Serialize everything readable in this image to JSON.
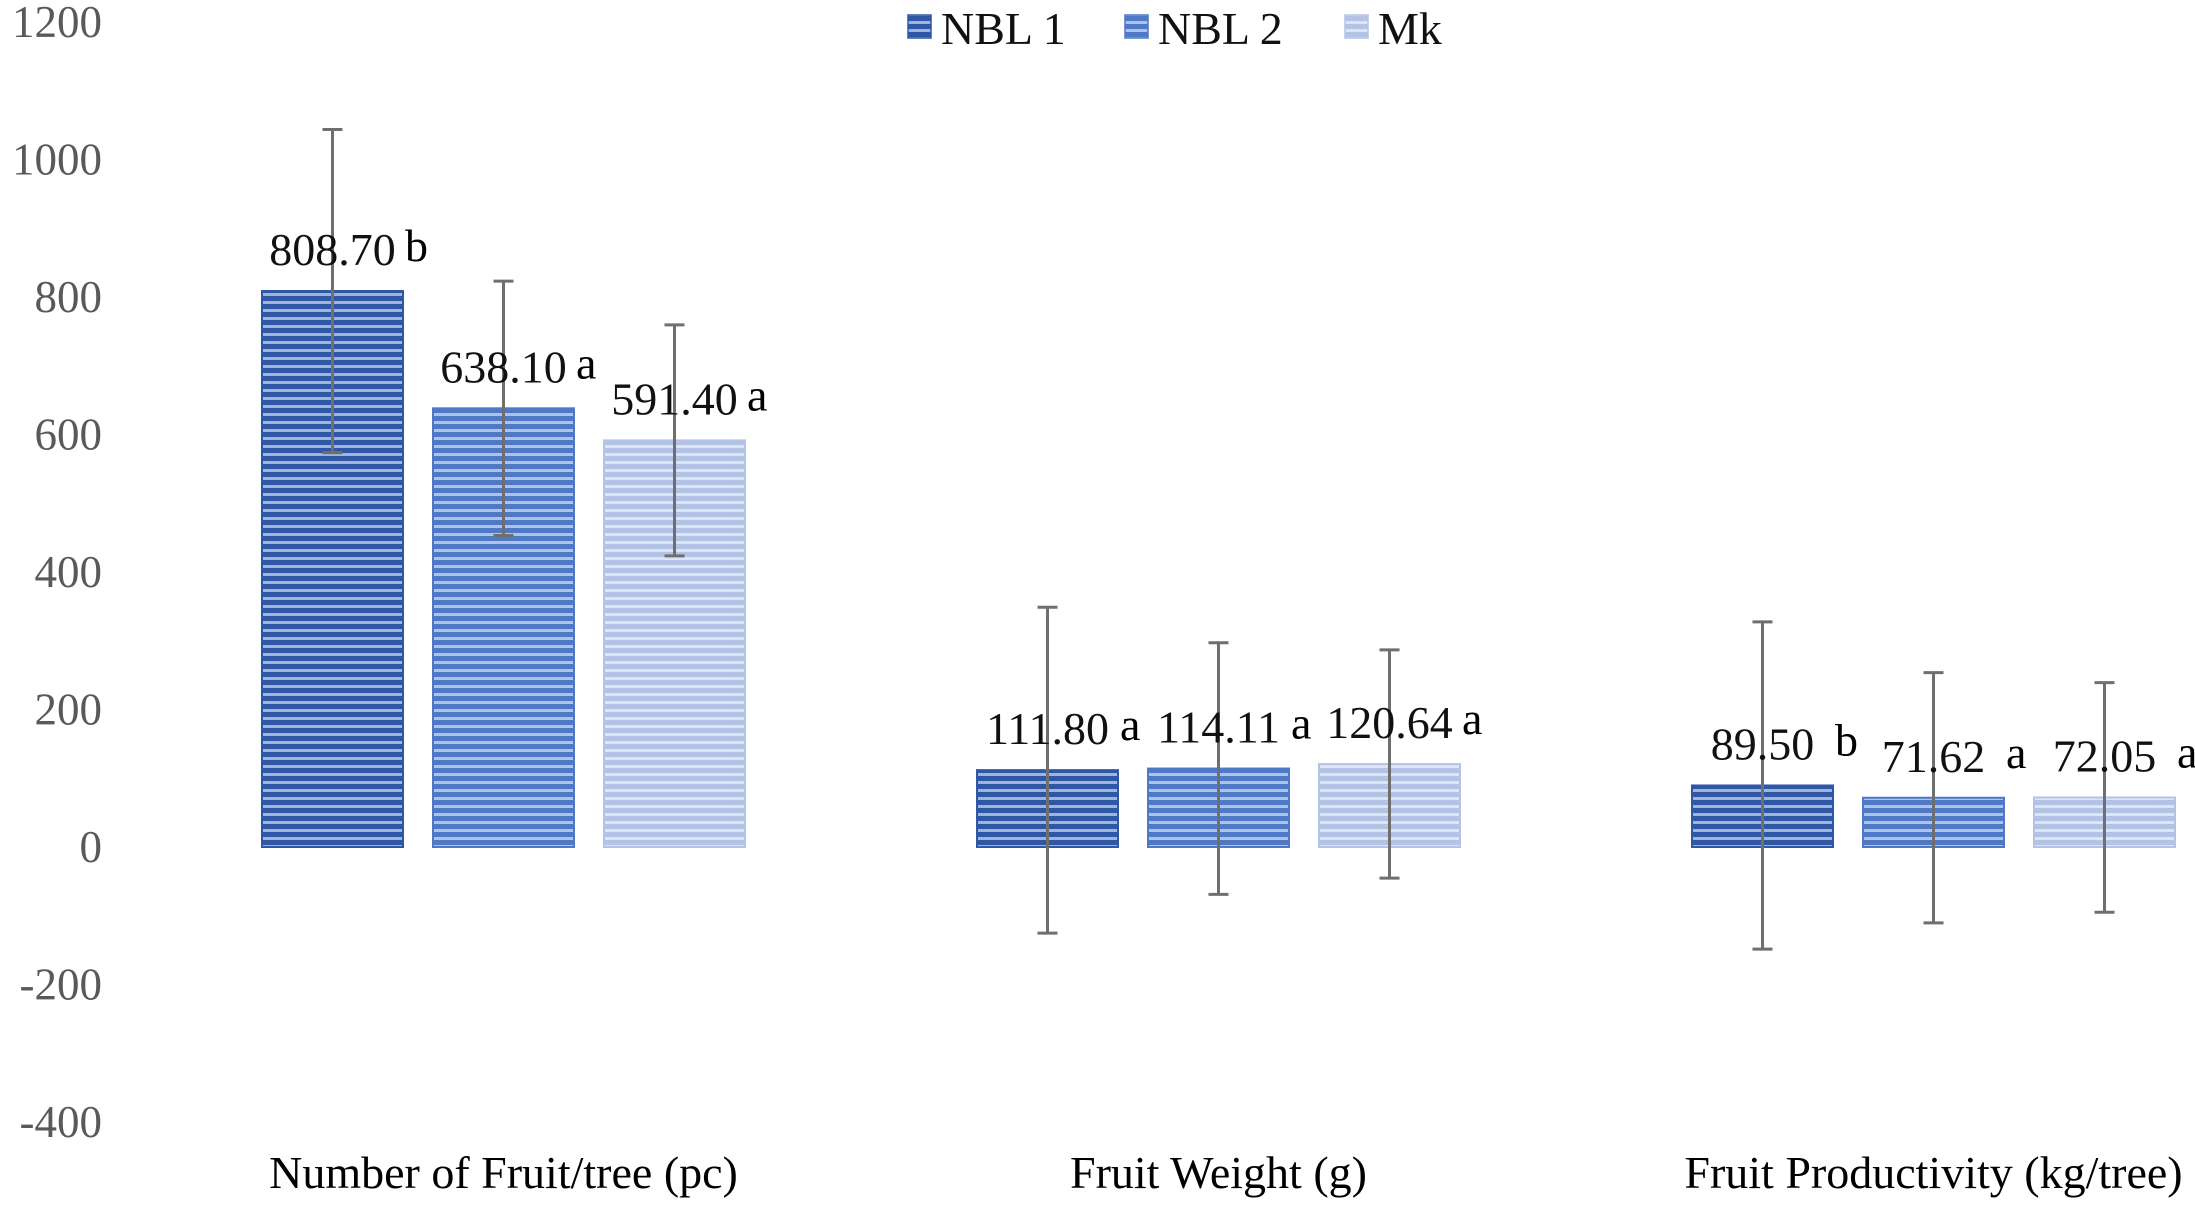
{
  "chart_data": {
    "type": "bar",
    "categories": [
      "Number of Fruit/tree (pc)",
      "Fruit Weight (g)",
      "Fruit Productivity (kg/tree)"
    ],
    "series": [
      {
        "name": "NBL 1",
        "color": "#2e58a6",
        "values": [
          808.7,
          111.8,
          89.5
        ],
        "value_labels": [
          "808.70",
          "111.80",
          "89.50"
        ],
        "sig": [
          "b",
          "a",
          "b"
        ],
        "error": [
          235,
          237,
          238
        ]
      },
      {
        "name": "NBL 2",
        "color": "#4d79c7",
        "values": [
          638.1,
          114.11,
          71.62
        ],
        "value_labels": [
          "638.10",
          "114.11",
          "71.62"
        ],
        "sig": [
          "a",
          "a",
          "a"
        ],
        "error": [
          185,
          183,
          182
        ]
      },
      {
        "name": "Mk",
        "color": "#b3c3e6",
        "values": [
          591.4,
          120.64,
          72.05
        ],
        "value_labels": [
          "591.40",
          "120.64",
          "72.05"
        ],
        "sig": [
          "a",
          "a",
          "a"
        ],
        "error": [
          168,
          166,
          167
        ]
      }
    ],
    "yticks": [
      "1200",
      "1000",
      "800",
      "600",
      "400",
      "200",
      "0",
      "-200",
      "-400"
    ],
    "ylim": [
      -400,
      1200
    ],
    "grid": false,
    "legend": "top-center",
    "title": "",
    "xlabel": "",
    "ylabel": ""
  }
}
